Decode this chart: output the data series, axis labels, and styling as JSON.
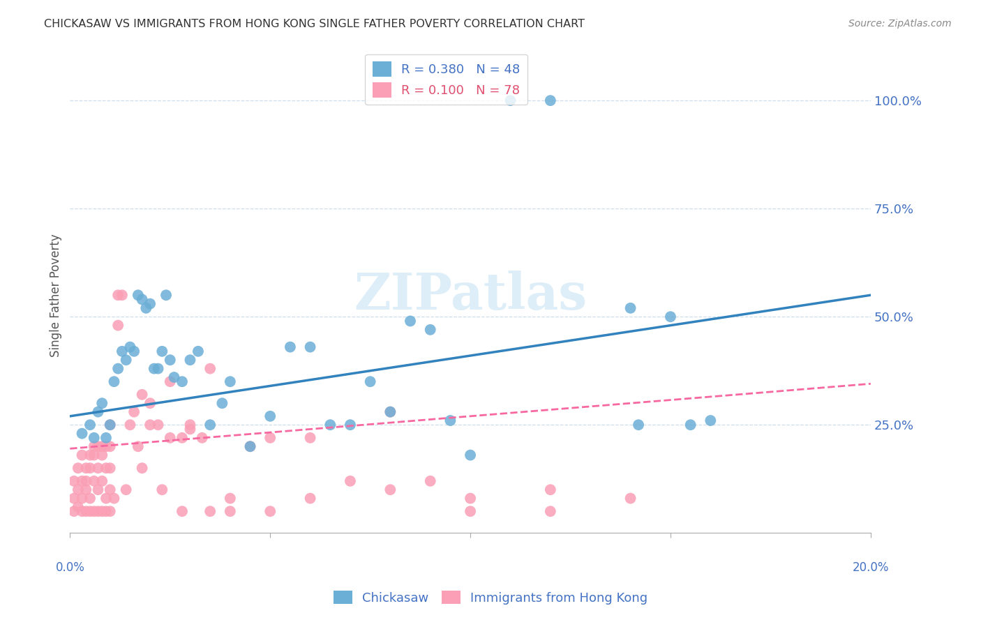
{
  "title": "CHICKASAW VS IMMIGRANTS FROM HONG KONG SINGLE FATHER POVERTY CORRELATION CHART",
  "source": "Source: ZipAtlas.com",
  "ylabel": "Single Father Poverty",
  "ytick_labels": [
    "25.0%",
    "50.0%",
    "75.0%",
    "100.0%"
  ],
  "ytick_values": [
    0.25,
    0.5,
    0.75,
    1.0
  ],
  "xlim": [
    0.0,
    0.2
  ],
  "ylim": [
    0.0,
    1.1
  ],
  "legend1_r": "R = 0.380",
  "legend1_n": "N = 48",
  "legend2_r": "R = 0.100",
  "legend2_n": "N = 78",
  "color_blue": "#6baed6",
  "color_pink": "#fa9fb5",
  "color_blue_line": "#3182bd",
  "color_pink_line": "#f768a1",
  "watermark": "ZIPatlas",
  "legend_label1": "Chickasaw",
  "legend_label2": "Immigrants from Hong Kong",
  "ck_line_x": [
    0.0,
    0.2
  ],
  "ck_line_y": [
    0.27,
    0.55
  ],
  "hk_line_x": [
    0.0,
    0.2
  ],
  "hk_line_y": [
    0.195,
    0.345
  ],
  "ck_x": [
    0.003,
    0.005,
    0.006,
    0.007,
    0.008,
    0.009,
    0.01,
    0.011,
    0.012,
    0.013,
    0.014,
    0.015,
    0.016,
    0.017,
    0.018,
    0.019,
    0.02,
    0.021,
    0.022,
    0.023,
    0.024,
    0.025,
    0.026,
    0.028,
    0.03,
    0.032,
    0.035,
    0.038,
    0.04,
    0.045,
    0.05,
    0.055,
    0.06,
    0.065,
    0.07,
    0.075,
    0.08,
    0.085,
    0.09,
    0.095,
    0.1,
    0.11,
    0.12,
    0.14,
    0.15,
    0.16,
    0.142,
    0.155
  ],
  "ck_y": [
    0.23,
    0.25,
    0.22,
    0.28,
    0.3,
    0.22,
    0.25,
    0.35,
    0.38,
    0.42,
    0.4,
    0.43,
    0.42,
    0.55,
    0.54,
    0.52,
    0.53,
    0.38,
    0.38,
    0.42,
    0.55,
    0.4,
    0.36,
    0.35,
    0.4,
    0.42,
    0.25,
    0.3,
    0.35,
    0.2,
    0.27,
    0.43,
    0.43,
    0.25,
    0.25,
    0.35,
    0.28,
    0.49,
    0.47,
    0.26,
    0.18,
    1.0,
    1.0,
    0.52,
    0.5,
    0.26,
    0.25,
    0.25
  ],
  "hk_x": [
    0.001,
    0.001,
    0.002,
    0.002,
    0.003,
    0.003,
    0.003,
    0.004,
    0.004,
    0.004,
    0.005,
    0.005,
    0.005,
    0.006,
    0.006,
    0.006,
    0.007,
    0.007,
    0.007,
    0.008,
    0.008,
    0.008,
    0.009,
    0.009,
    0.009,
    0.01,
    0.01,
    0.01,
    0.01,
    0.011,
    0.001,
    0.002,
    0.003,
    0.004,
    0.005,
    0.006,
    0.007,
    0.008,
    0.009,
    0.01,
    0.012,
    0.013,
    0.015,
    0.016,
    0.018,
    0.02,
    0.022,
    0.025,
    0.028,
    0.03,
    0.033,
    0.035,
    0.04,
    0.045,
    0.05,
    0.06,
    0.07,
    0.08,
    0.09,
    0.1,
    0.012,
    0.014,
    0.018,
    0.025,
    0.03,
    0.04,
    0.06,
    0.08,
    0.1,
    0.12,
    0.017,
    0.02,
    0.023,
    0.028,
    0.035,
    0.05,
    0.12,
    0.14
  ],
  "hk_y": [
    0.05,
    0.08,
    0.06,
    0.1,
    0.05,
    0.08,
    0.12,
    0.05,
    0.1,
    0.15,
    0.05,
    0.08,
    0.15,
    0.05,
    0.12,
    0.18,
    0.05,
    0.1,
    0.2,
    0.05,
    0.12,
    0.2,
    0.05,
    0.08,
    0.15,
    0.05,
    0.1,
    0.15,
    0.2,
    0.08,
    0.12,
    0.15,
    0.18,
    0.12,
    0.18,
    0.2,
    0.15,
    0.18,
    0.2,
    0.25,
    0.55,
    0.55,
    0.25,
    0.28,
    0.32,
    0.3,
    0.25,
    0.22,
    0.22,
    0.24,
    0.22,
    0.38,
    0.08,
    0.2,
    0.22,
    0.08,
    0.12,
    0.1,
    0.12,
    0.08,
    0.48,
    0.1,
    0.15,
    0.35,
    0.25,
    0.05,
    0.22,
    0.28,
    0.05,
    0.1,
    0.2,
    0.25,
    0.1,
    0.05,
    0.05,
    0.05,
    0.05,
    0.08
  ]
}
